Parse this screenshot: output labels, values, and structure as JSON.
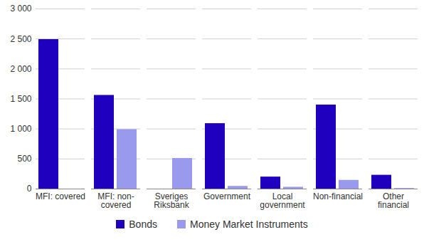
{
  "chart_data": {
    "type": "bar",
    "categories": [
      "MFI: covered",
      "MFI: non-covered",
      "Sveriges Riksbank",
      "Government",
      "Local government",
      "Non-financial",
      "Other financial"
    ],
    "series": [
      {
        "name": "Bonds",
        "color": "#1f00bf",
        "values": [
          2490,
          1560,
          0,
          1090,
          200,
          1400,
          230
        ]
      },
      {
        "name": "Money Market Instruments",
        "color": "#9999ee",
        "values": [
          0,
          990,
          510,
          45,
          30,
          145,
          10
        ]
      }
    ],
    "ylim": [
      0,
      3000
    ],
    "yticks": [
      0,
      {
        "value": 500,
        "label": "500"
      },
      {
        "value": 1000,
        "label": "1 000"
      },
      {
        "value": 1500,
        "label": "1 500"
      },
      {
        "value": 2000,
        "label": "2 000"
      },
      {
        "value": 2500,
        "label": "2 500"
      },
      {
        "value": 3000,
        "label": "3 000"
      }
    ],
    "grid": true,
    "legend": "bottom"
  }
}
